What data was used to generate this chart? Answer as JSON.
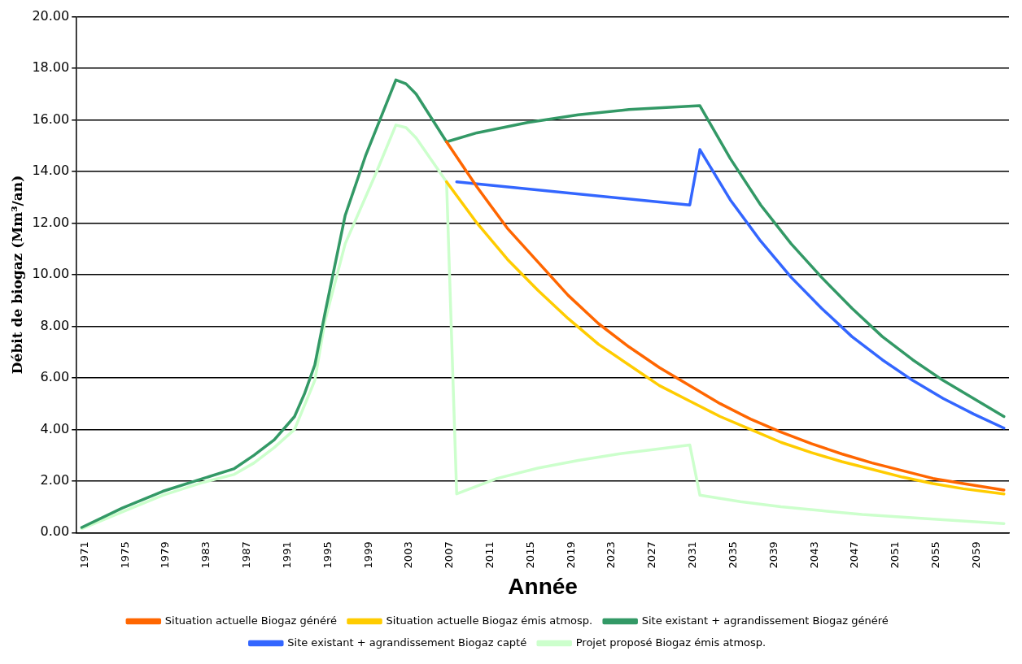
{
  "chart_data": {
    "type": "line",
    "xlabel": "Année",
    "ylabel": "Débit de biogaz (Mm³/an)",
    "xlim": [
      1970.5,
      2062.5
    ],
    "xticks": [
      1971,
      1975,
      1979,
      1983,
      1987,
      1991,
      1995,
      1999,
      2003,
      2007,
      2011,
      2015,
      2019,
      2023,
      2027,
      2031,
      2035,
      2039,
      2043,
      2047,
      2051,
      2055,
      2059
    ],
    "ylim": [
      0,
      20
    ],
    "yticks": [
      {
        "value": 0,
        "label": "0.00"
      },
      {
        "value": 2,
        "label": "2.00"
      },
      {
        "value": 4,
        "label": "4.00"
      },
      {
        "value": 6,
        "label": "6.00"
      },
      {
        "value": 8,
        "label": "8.00"
      },
      {
        "value": 10,
        "label": "10.00"
      },
      {
        "value": 12,
        "label": "12.00"
      },
      {
        "value": 14,
        "label": "14.00"
      },
      {
        "value": 16,
        "label": "16.00"
      },
      {
        "value": 18,
        "label": "18.00"
      },
      {
        "value": 20,
        "label": "20.00"
      }
    ],
    "grid": "y",
    "legend": "bottom",
    "marker": "none",
    "line_style": "solid",
    "series": [
      {
        "name": "Situation actuelle Biogaz généré",
        "color": "#ff6600",
        "x": [
          2007,
          2010,
          2013,
          2016,
          2019,
          2022,
          2025,
          2028,
          2031,
          2034,
          2037,
          2040,
          2043,
          2046,
          2049,
          2052,
          2055,
          2058,
          2062
        ],
        "values": [
          15.15,
          13.4,
          11.8,
          10.5,
          9.2,
          8.1,
          7.2,
          6.4,
          5.7,
          5.0,
          4.4,
          3.9,
          3.45,
          3.05,
          2.7,
          2.4,
          2.1,
          1.9,
          1.65
        ]
      },
      {
        "name": "Situation actuelle Biogaz émis atmosp.",
        "color": "#ffcc00",
        "x": [
          2007,
          2010,
          2013,
          2016,
          2019,
          2022,
          2025,
          2028,
          2031,
          2034,
          2037,
          2040,
          2043,
          2046,
          2049,
          2052,
          2055,
          2058,
          2062
        ],
        "values": [
          13.6,
          12.0,
          10.6,
          9.4,
          8.3,
          7.3,
          6.5,
          5.7,
          5.1,
          4.5,
          4.0,
          3.5,
          3.1,
          2.75,
          2.45,
          2.15,
          1.9,
          1.7,
          1.5
        ]
      },
      {
        "name": "Site existant + agrandissement Biogaz généré",
        "color": "#339966",
        "x": [
          1971,
          1975,
          1979,
          1983,
          1986,
          1988,
          1990,
          1992,
          1993,
          1994,
          1995,
          1997,
          1999,
          2002,
          2003,
          2004,
          2007,
          2010,
          2015,
          2020,
          2025,
          2032,
          2035,
          2038,
          2041,
          2044,
          2047,
          2050,
          2053,
          2056,
          2059,
          2062
        ],
        "values": [
          0.2,
          0.95,
          1.6,
          2.1,
          2.47,
          3.0,
          3.6,
          4.5,
          5.4,
          6.5,
          8.5,
          12.3,
          14.6,
          17.55,
          17.4,
          17.0,
          15.15,
          15.5,
          15.9,
          16.2,
          16.4,
          16.55,
          14.5,
          12.7,
          11.2,
          9.9,
          8.7,
          7.6,
          6.7,
          5.9,
          5.2,
          4.5
        ]
      },
      {
        "name": "Site existant + agrandissement Biogaz capté",
        "color": "#3366ff",
        "x": [
          2008,
          2031,
          2032,
          2035,
          2038,
          2041,
          2044,
          2047,
          2050,
          2053,
          2056,
          2059,
          2062
        ],
        "values": [
          13.6,
          12.7,
          14.85,
          12.9,
          11.3,
          9.9,
          8.7,
          7.6,
          6.7,
          5.9,
          5.2,
          4.6,
          4.05
        ]
      },
      {
        "name": "Projet proposé Biogaz émis atmosp.",
        "color": "#ccffcc",
        "x": [
          1971,
          1975,
          1979,
          1983,
          1986,
          1988,
          1990,
          1992,
          1994,
          1995,
          1997,
          2000,
          2002,
          2003,
          2004,
          2007,
          2008,
          2012,
          2016,
          2020,
          2024,
          2028,
          2031,
          2032,
          2036,
          2040,
          2044,
          2048,
          2052,
          2056,
          2062
        ],
        "values": [
          0.15,
          0.8,
          1.45,
          1.95,
          2.25,
          2.7,
          3.3,
          4.0,
          5.9,
          8.2,
          11.2,
          13.9,
          15.8,
          15.7,
          15.3,
          13.6,
          1.5,
          2.1,
          2.5,
          2.8,
          3.05,
          3.25,
          3.4,
          1.45,
          1.2,
          1.0,
          0.85,
          0.7,
          0.6,
          0.5,
          0.35
        ]
      }
    ]
  }
}
